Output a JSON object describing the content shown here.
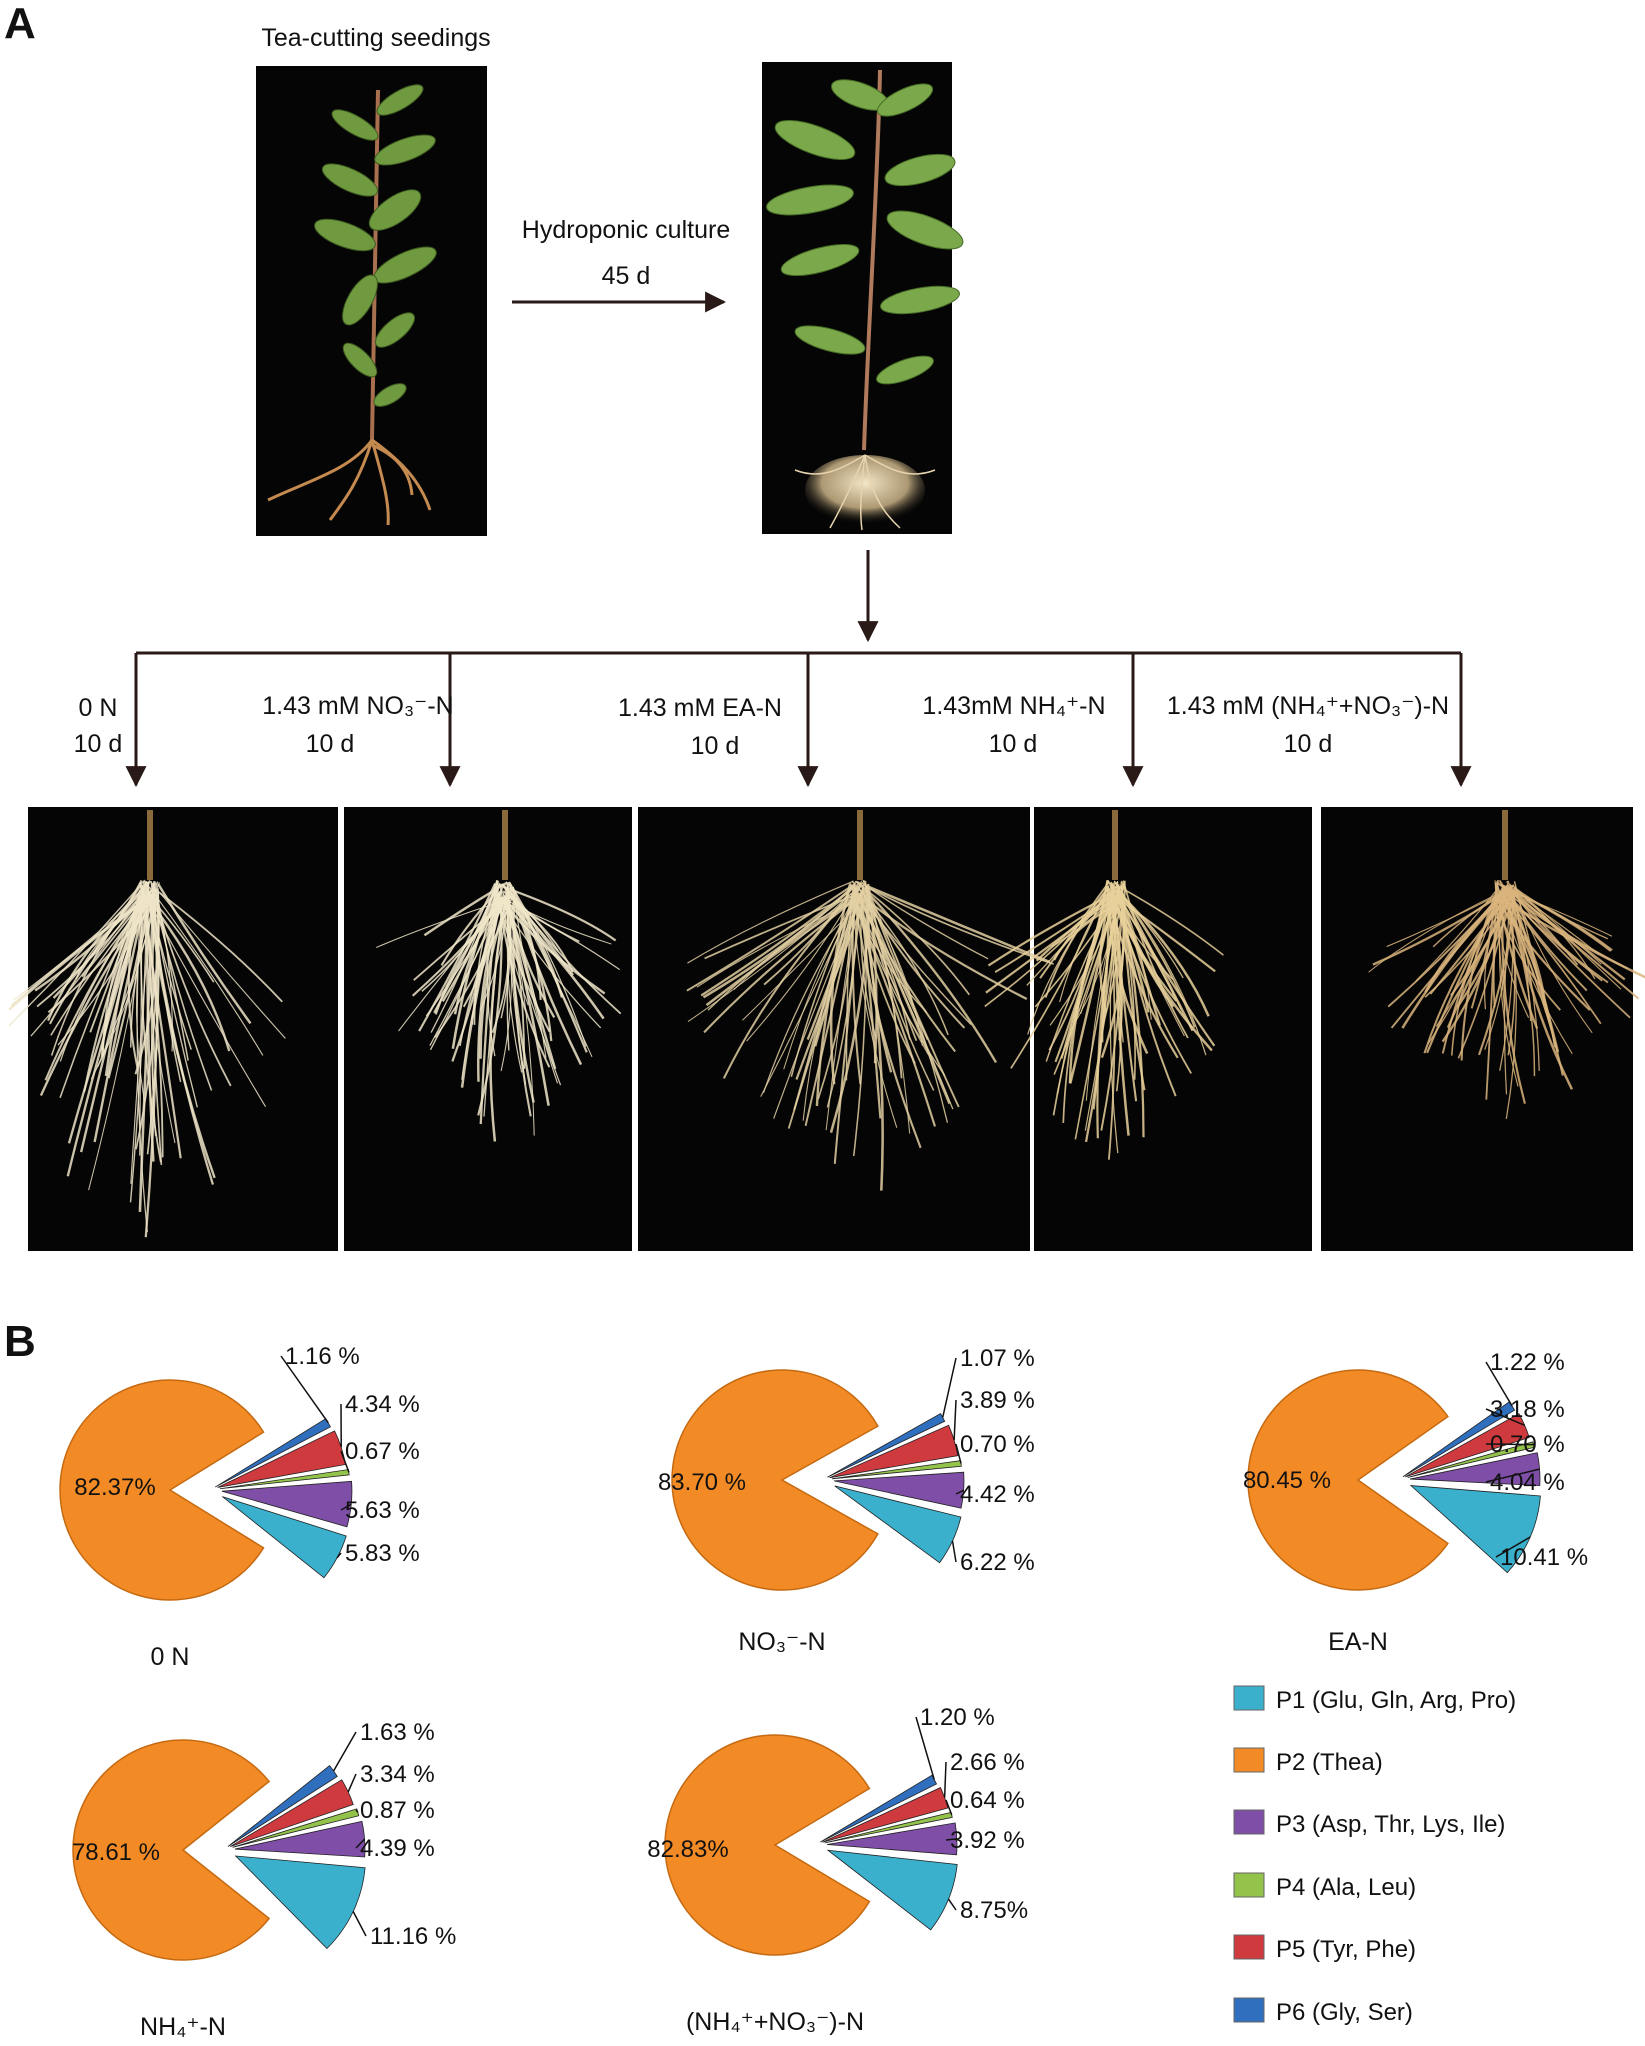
{
  "panels": {
    "a": "A",
    "b": "B"
  },
  "panel_a": {
    "seedling_title": "Tea-cutting seedings",
    "culture_label": "Hydroponic culture",
    "culture_days": "45 d",
    "treatments": [
      {
        "label": "0 N",
        "days": "10 d"
      },
      {
        "label": "1.43 mM NO₃⁻-N",
        "days": "10 d"
      },
      {
        "label": "1.43 mM EA-N",
        "days": "10 d"
      },
      {
        "label": "1.43mM  NH₄⁺-N",
        "days": "10 d"
      },
      {
        "label": "1.43 mM (NH₄⁺+NO₃⁻)-N",
        "days": "10 d"
      }
    ]
  },
  "chart_data": {
    "type": "pie",
    "title": "",
    "legend": [
      {
        "id": "P1",
        "label": "P1 (Glu, Gln, Arg, Pro)",
        "color": "#3ab0cc"
      },
      {
        "id": "P2",
        "label": "P2  (Thea)",
        "color": "#f28a25"
      },
      {
        "id": "P3",
        "label": "P3  (Asp, Thr, Lys, Ile)",
        "color": "#7f4fa8"
      },
      {
        "id": "P4",
        "label": "P4  (Ala, Leu)",
        "color": "#93c34a"
      },
      {
        "id": "P5",
        "label": "P5  (Tyr, Phe)",
        "color": "#cf3a3f"
      },
      {
        "id": "P6",
        "label": "P6  (Gly, Ser)",
        "color": "#2f6fbd"
      }
    ],
    "charts": [
      {
        "name": "0 N",
        "values": {
          "P1": 5.83,
          "P2": 82.37,
          "P3": 5.63,
          "P4": 0.67,
          "P5": 4.34,
          "P6": 1.16
        },
        "labels": {
          "P1": "5.83 %",
          "P2": "82.37%",
          "P3": "5.63 %",
          "P4": "0.67 %",
          "P5": "4.34 %",
          "P6": "1.16 %"
        }
      },
      {
        "name": "NO₃⁻-N",
        "values": {
          "P1": 6.22,
          "P2": 83.7,
          "P3": 4.42,
          "P4": 0.7,
          "P5": 3.89,
          "P6": 1.07
        },
        "labels": {
          "P1": "6.22 %",
          "P2": "83.70 %",
          "P3": "4.42 %",
          "P4": "0.70 %",
          "P5": "3.89 %",
          "P6": "1.07 %"
        }
      },
      {
        "name": "EA-N",
        "values": {
          "P1": 10.41,
          "P2": 80.45,
          "P3": 4.04,
          "P4": 0.7,
          "P5": 3.18,
          "P6": 1.22
        },
        "labels": {
          "P1": "10.41 %",
          "P2": "80.45 %",
          "P3": "4.04 %",
          "P4": "0.70 %",
          "P5": "3.18 %",
          "P6": "1.22 %"
        }
      },
      {
        "name": "NH₄⁺-N",
        "values": {
          "P1": 11.16,
          "P2": 78.61,
          "P3": 4.39,
          "P4": 0.87,
          "P5": 3.34,
          "P6": 1.63
        },
        "labels": {
          "P1": "11.16 %",
          "P2": "78.61 %",
          "P3": "4.39 %",
          "P4": "0.87 %",
          "P5": "3.34 %",
          "P6": "1.63 %"
        }
      },
      {
        "name": "(NH₄⁺+NO₃⁻)-N",
        "values": {
          "P1": 8.75,
          "P2": 82.83,
          "P3": 3.92,
          "P4": 0.64,
          "P5": 2.66,
          "P6": 1.2
        },
        "labels": {
          "P1": "8.75%",
          "P2": "82.83%",
          "P3": "3.92 %",
          "P4": "0.64 %",
          "P5": "2.66 %",
          "P6": "1.20 %"
        }
      }
    ]
  }
}
